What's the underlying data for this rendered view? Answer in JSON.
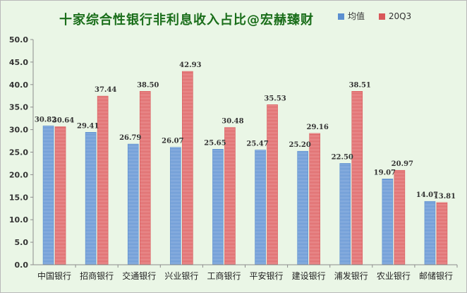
{
  "chart_data": {
    "type": "bar",
    "title": "十家综合性银行非利息收入占比@宏赫臻财",
    "categories": [
      "中国银行",
      "招商银行",
      "交通银行",
      "兴业银行",
      "工商银行",
      "平安银行",
      "建设银行",
      "浦发银行",
      "农业银行",
      "邮储银行"
    ],
    "series": [
      {
        "name": "均值",
        "values": [
          30.82,
          29.41,
          26.79,
          26.07,
          25.65,
          25.47,
          25.2,
          22.5,
          19.07,
          14.07
        ],
        "color": "#5b8fd0"
      },
      {
        "name": "20Q3",
        "values": [
          30.64,
          37.44,
          38.5,
          42.93,
          30.48,
          35.53,
          29.16,
          38.51,
          20.97,
          13.81
        ],
        "color": "#d9585a"
      }
    ],
    "ylim": [
      0,
      50
    ],
    "yticks": [
      "0.0",
      "5.0",
      "10.0",
      "15.0",
      "20.0",
      "25.0",
      "30.0",
      "35.0",
      "40.0",
      "45.0",
      "50.0"
    ],
    "xlabel": "",
    "ylabel": "",
    "grid": false,
    "legend_position": "top-right",
    "background_color": "#eaf6e6"
  }
}
